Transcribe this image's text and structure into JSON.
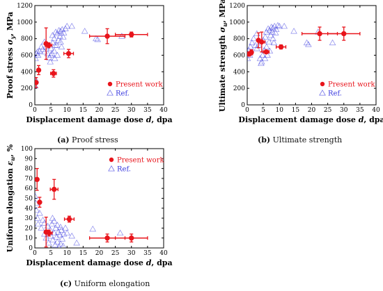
{
  "chart_data": [
    {
      "id": "a",
      "type": "scatter",
      "caption_letter": "(a)",
      "caption_text": "Proof stress",
      "ylabel_main": "Proof stress ",
      "ylabel_sym": "σ",
      "ylabel_sub": "y",
      "ylabel_unit": ", MPa",
      "xlabel_main": "Displacement damage dose ",
      "xlabel_sym": "d",
      "xlabel_unit": ", dpa",
      "xlim": [
        0,
        40
      ],
      "ylim": [
        0,
        1200
      ],
      "xticks": [
        "0",
        "5",
        "10",
        "15",
        "20",
        "25",
        "30",
        "35",
        "40"
      ],
      "yticks": [
        "0",
        "200",
        "400",
        "600",
        "800",
        "1000",
        "1200"
      ],
      "legend_position": "bottom-right",
      "series": [
        {
          "name": "Present work",
          "marker": "filled-circle",
          "color": "#e8141b",
          "points": [
            {
              "x": 0.4,
              "y": 270,
              "yerr": 60,
              "xerr": 0.3
            },
            {
              "x": 1.2,
              "y": 420,
              "yerr": 55,
              "xerr": 0
            },
            {
              "x": 3.5,
              "y": 740,
              "yerr": 190,
              "xerr": 0
            },
            {
              "x": 4.3,
              "y": 720,
              "yerr": 30,
              "xerr": 1.0
            },
            {
              "x": 5.8,
              "y": 380,
              "yerr": 45,
              "xerr": 0.9
            },
            {
              "x": 10.5,
              "y": 620,
              "yerr": 50,
              "xerr": 1.5
            },
            {
              "x": 22.5,
              "y": 830,
              "yerr": 90,
              "xerr": 5.5
            },
            {
              "x": 30,
              "y": 850,
              "yerr": 30,
              "xerr": 5
            }
          ]
        },
        {
          "name": "Ref.",
          "marker": "open-triangle",
          "color": "#3a3adf",
          "points": [
            {
              "x": 0.1,
              "y": 230
            },
            {
              "x": 0.3,
              "y": 300
            },
            {
              "x": 0.2,
              "y": 560
            },
            {
              "x": 0.5,
              "y": 620
            },
            {
              "x": 0.8,
              "y": 640
            },
            {
              "x": 1.0,
              "y": 600
            },
            {
              "x": 1.5,
              "y": 650
            },
            {
              "x": 2.0,
              "y": 700
            },
            {
              "x": 2.5,
              "y": 670
            },
            {
              "x": 3.0,
              "y": 760
            },
            {
              "x": 3.0,
              "y": 640
            },
            {
              "x": 3.5,
              "y": 700
            },
            {
              "x": 4.0,
              "y": 620
            },
            {
              "x": 4.5,
              "y": 570
            },
            {
              "x": 4.8,
              "y": 520
            },
            {
              "x": 5.0,
              "y": 680
            },
            {
              "x": 5.3,
              "y": 620
            },
            {
              "x": 5.6,
              "y": 750
            },
            {
              "x": 6.0,
              "y": 800
            },
            {
              "x": 6.0,
              "y": 650
            },
            {
              "x": 6.2,
              "y": 560
            },
            {
              "x": 6.5,
              "y": 880
            },
            {
              "x": 6.8,
              "y": 720
            },
            {
              "x": 7.0,
              "y": 860
            },
            {
              "x": 7.0,
              "y": 600
            },
            {
              "x": 7.3,
              "y": 780
            },
            {
              "x": 7.5,
              "y": 900
            },
            {
              "x": 7.8,
              "y": 830
            },
            {
              "x": 8.0,
              "y": 760
            },
            {
              "x": 8.0,
              "y": 890
            },
            {
              "x": 8.3,
              "y": 700
            },
            {
              "x": 8.5,
              "y": 910
            },
            {
              "x": 8.8,
              "y": 820
            },
            {
              "x": 9.0,
              "y": 870
            },
            {
              "x": 5.5,
              "y": 840
            },
            {
              "x": 6.3,
              "y": 720
            },
            {
              "x": 5.0,
              "y": 600
            },
            {
              "x": 9.5,
              "y": 920
            },
            {
              "x": 10.0,
              "y": 950
            },
            {
              "x": 11.5,
              "y": 950
            },
            {
              "x": 15.5,
              "y": 890
            },
            {
              "x": 19.0,
              "y": 800
            },
            {
              "x": 19.5,
              "y": 790
            },
            {
              "x": 27.0,
              "y": 830
            }
          ]
        }
      ]
    },
    {
      "id": "b",
      "type": "scatter",
      "caption_letter": "(b)",
      "caption_text": "Ultimate strength",
      "ylabel_main": "Ultimate strength ",
      "ylabel_sym": "σ",
      "ylabel_sub": "u",
      "ylabel_unit": ", MPa",
      "xlabel_main": "Displacement damage dose ",
      "xlabel_sym": "d",
      "xlabel_unit": ", dpa",
      "xlim": [
        0,
        40
      ],
      "ylim": [
        0,
        1200
      ],
      "xticks": [
        "0",
        "5",
        "10",
        "15",
        "20",
        "25",
        "30",
        "35",
        "40"
      ],
      "yticks": [
        "0",
        "200",
        "400",
        "600",
        "800",
        "1000",
        "1200"
      ],
      "legend_position": "bottom-right",
      "series": [
        {
          "name": "Present work",
          "marker": "filled-circle",
          "color": "#e8141b",
          "points": [
            {
              "x": 0.6,
              "y": 615,
              "yerr": 25,
              "xerr": 0.4
            },
            {
              "x": 1.3,
              "y": 635,
              "yerr": 30,
              "xerr": 0
            },
            {
              "x": 3.5,
              "y": 780,
              "yerr": 90,
              "xerr": 0
            },
            {
              "x": 4.5,
              "y": 760,
              "yerr": 120,
              "xerr": 1.0
            },
            {
              "x": 5.9,
              "y": 640,
              "yerr": 20,
              "xerr": 0.9
            },
            {
              "x": 10.5,
              "y": 700,
              "yerr": 25,
              "xerr": 1.5
            },
            {
              "x": 22.5,
              "y": 860,
              "yerr": 80,
              "xerr": 5.5
            },
            {
              "x": 30,
              "y": 860,
              "yerr": 80,
              "xerr": 5
            }
          ]
        },
        {
          "name": "Ref.",
          "marker": "open-triangle",
          "color": "#3a3adf",
          "points": [
            {
              "x": 0.1,
              "y": 560
            },
            {
              "x": 0.3,
              "y": 620
            },
            {
              "x": 0.5,
              "y": 660
            },
            {
              "x": 0.8,
              "y": 600
            },
            {
              "x": 1.0,
              "y": 700
            },
            {
              "x": 1.5,
              "y": 750
            },
            {
              "x": 2.0,
              "y": 800
            },
            {
              "x": 2.5,
              "y": 720
            },
            {
              "x": 3.0,
              "y": 860
            },
            {
              "x": 3.0,
              "y": 680
            },
            {
              "x": 3.5,
              "y": 720
            },
            {
              "x": 4.0,
              "y": 560
            },
            {
              "x": 4.3,
              "y": 500
            },
            {
              "x": 4.8,
              "y": 600
            },
            {
              "x": 5.0,
              "y": 780
            },
            {
              "x": 5.3,
              "y": 660
            },
            {
              "x": 5.6,
              "y": 820
            },
            {
              "x": 6.0,
              "y": 880
            },
            {
              "x": 6.0,
              "y": 700
            },
            {
              "x": 6.3,
              "y": 600
            },
            {
              "x": 6.5,
              "y": 920
            },
            {
              "x": 6.8,
              "y": 760
            },
            {
              "x": 7.0,
              "y": 900
            },
            {
              "x": 7.0,
              "y": 650
            },
            {
              "x": 7.3,
              "y": 840
            },
            {
              "x": 7.5,
              "y": 940
            },
            {
              "x": 7.8,
              "y": 880
            },
            {
              "x": 8.0,
              "y": 800
            },
            {
              "x": 8.0,
              "y": 930
            },
            {
              "x": 8.3,
              "y": 750
            },
            {
              "x": 8.5,
              "y": 950
            },
            {
              "x": 8.8,
              "y": 870
            },
            {
              "x": 9.0,
              "y": 910
            },
            {
              "x": 5.5,
              "y": 560
            },
            {
              "x": 4.5,
              "y": 520
            },
            {
              "x": 9.5,
              "y": 960
            },
            {
              "x": 10.0,
              "y": 950
            },
            {
              "x": 11.5,
              "y": 950
            },
            {
              "x": 14.5,
              "y": 890
            },
            {
              "x": 18.5,
              "y": 750
            },
            {
              "x": 19.0,
              "y": 730
            },
            {
              "x": 26.5,
              "y": 750
            },
            {
              "x": 22.0,
              "y": 880
            }
          ]
        }
      ]
    },
    {
      "id": "c",
      "type": "scatter",
      "caption_letter": "(c)",
      "caption_text": "Uniform elongation",
      "ylabel_main": "Uniform elongation ",
      "ylabel_sym": "ε",
      "ylabel_sub": "u",
      "ylabel_unit": ", %",
      "xlabel_main": "Displacement damage dose ",
      "xlabel_sym": "d",
      "xlabel_unit": ", dpa",
      "xlim": [
        0,
        40
      ],
      "ylim": [
        0,
        100
      ],
      "xticks": [
        "0",
        "5",
        "10",
        "15",
        "20",
        "25",
        "30",
        "35",
        "40"
      ],
      "yticks": [
        "0",
        "10",
        "20",
        "30",
        "40",
        "50",
        "60",
        "70",
        "80",
        "90",
        "100"
      ],
      "legend_position": "top-right",
      "series": [
        {
          "name": "Present work",
          "marker": "filled-circle",
          "color": "#e8141b",
          "points": [
            {
              "x": 0.7,
              "y": 69,
              "yerr": 11,
              "xerr": 0
            },
            {
              "x": 1.5,
              "y": 46,
              "yerr": 5,
              "xerr": 0
            },
            {
              "x": 3.5,
              "y": 16,
              "yerr": 15,
              "xerr": 0
            },
            {
              "x": 4.4,
              "y": 15,
              "yerr": 3,
              "xerr": 1.0
            },
            {
              "x": 6.0,
              "y": 59,
              "yerr": 10,
              "xerr": 1.2
            },
            {
              "x": 10.7,
              "y": 29,
              "yerr": 3,
              "xerr": 1.5
            },
            {
              "x": 22.5,
              "y": 10,
              "yerr": 4,
              "xerr": 5.5
            },
            {
              "x": 30,
              "y": 10,
              "yerr": 4,
              "xerr": 5
            }
          ]
        },
        {
          "name": "Ref.",
          "marker": "open-triangle",
          "color": "#3a3adf",
          "points": [
            {
              "x": 0.1,
              "y": 52
            },
            {
              "x": 0.3,
              "y": 45
            },
            {
              "x": 0.5,
              "y": 38
            },
            {
              "x": 0.8,
              "y": 30
            },
            {
              "x": 1.0,
              "y": 24
            },
            {
              "x": 1.5,
              "y": 35
            },
            {
              "x": 2.0,
              "y": 20
            },
            {
              "x": 2.5,
              "y": 28
            },
            {
              "x": 3.0,
              "y": 14
            },
            {
              "x": 3.0,
              "y": 25
            },
            {
              "x": 3.5,
              "y": 10
            },
            {
              "x": 4.0,
              "y": 22
            },
            {
              "x": 4.3,
              "y": 5
            },
            {
              "x": 4.8,
              "y": 18
            },
            {
              "x": 5.0,
              "y": 12
            },
            {
              "x": 5.3,
              "y": 24
            },
            {
              "x": 5.6,
              "y": 8
            },
            {
              "x": 6.0,
              "y": 27
            },
            {
              "x": 6.0,
              "y": 15
            },
            {
              "x": 6.3,
              "y": 3
            },
            {
              "x": 6.5,
              "y": 20
            },
            {
              "x": 6.8,
              "y": 11
            },
            {
              "x": 7.0,
              "y": 23
            },
            {
              "x": 7.0,
              "y": 6
            },
            {
              "x": 7.3,
              "y": 16
            },
            {
              "x": 7.5,
              "y": 1
            },
            {
              "x": 7.8,
              "y": 13
            },
            {
              "x": 8.0,
              "y": 21
            },
            {
              "x": 8.0,
              "y": 4
            },
            {
              "x": 8.3,
              "y": 18
            },
            {
              "x": 8.5,
              "y": 9
            },
            {
              "x": 8.8,
              "y": 2
            },
            {
              "x": 9.0,
              "y": 14
            },
            {
              "x": 5.5,
              "y": 30
            },
            {
              "x": 9.5,
              "y": 20
            },
            {
              "x": 10.0,
              "y": 15
            },
            {
              "x": 11.5,
              "y": 12
            },
            {
              "x": 13.0,
              "y": 5
            },
            {
              "x": 18.0,
              "y": 19
            },
            {
              "x": 26.5,
              "y": 15
            }
          ]
        }
      ]
    }
  ]
}
